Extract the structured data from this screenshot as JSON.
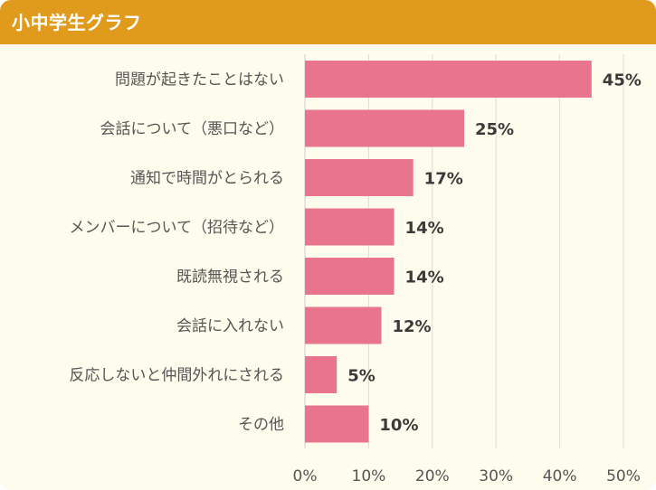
{
  "header": {
    "title": "小中学生グラフ"
  },
  "chart_data": {
    "type": "bar",
    "orientation": "horizontal",
    "title": "小中学生グラフ",
    "categories": [
      "問題が起きたことはない",
      "会話について（悪口など）",
      "通知で時間がとられる",
      "メンバーについて（招待など）",
      "既読無視される",
      "会話に入れない",
      "反応しないと仲間外れにされる",
      "その他"
    ],
    "values": [
      45,
      25,
      17,
      14,
      14,
      12,
      5,
      10
    ],
    "value_labels": [
      "45%",
      "25%",
      "17%",
      "14%",
      "14%",
      "12%",
      "5%",
      "10%"
    ],
    "xlim": [
      0,
      50
    ],
    "ticks": [
      0,
      10,
      20,
      30,
      40,
      50
    ],
    "tick_labels": [
      "0%",
      "10%",
      "20%",
      "30%",
      "40%",
      "50%"
    ],
    "grid": true,
    "xlabel": "",
    "ylabel": ""
  },
  "colors": {
    "header": "#e09b1c",
    "background": "#fefcec",
    "bar": "#e8758d",
    "grid": "#dcdcdc",
    "label_text": "#555555",
    "value_text": "#3a3a3a"
  }
}
